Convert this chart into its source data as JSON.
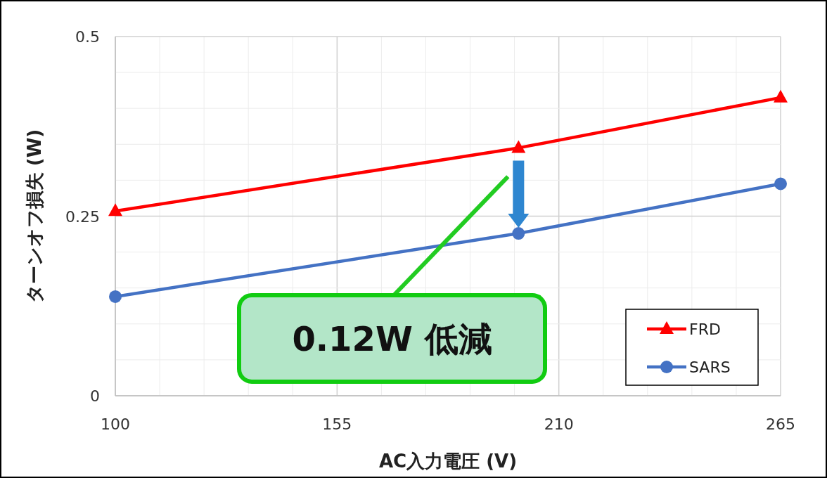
{
  "chart_data": {
    "type": "line",
    "xlabel": "AC入力電圧 (V)",
    "ylabel": "ターンオフ損失 (W)",
    "x": [
      100,
      200,
      265
    ],
    "series": [
      {
        "name": "FRD",
        "color": "#ff0000",
        "marker": "triangle",
        "values": [
          0.257,
          0.345,
          0.415
        ]
      },
      {
        "name": "SARS",
        "color": "#4472c4",
        "marker": "circle",
        "values": [
          0.138,
          0.226,
          0.295
        ]
      }
    ],
    "xlim": [
      100,
      265
    ],
    "ylim": [
      0,
      0.5
    ],
    "xticks": [
      100,
      {
        "value": 111,
        "label": null
      },
      {
        "value": 122,
        "label": null
      },
      {
        "value": 133,
        "label": null
      },
      {
        "value": 144,
        "label": null
      },
      155,
      {
        "value": 166,
        "label": null
      },
      {
        "value": 177,
        "label": null
      },
      {
        "value": 188,
        "label": null
      },
      {
        "value": 199,
        "label": null
      },
      210,
      {
        "value": 221,
        "label": null
      },
      {
        "value": 232,
        "label": null
      },
      {
        "value": 243,
        "label": null
      },
      {
        "value": 254,
        "label": null
      },
      265
    ],
    "yticks": [
      0,
      {
        "value": 0.05,
        "label": null
      },
      {
        "value": 0.1,
        "label": null
      },
      {
        "value": 0.15,
        "label": null
      },
      {
        "value": 0.2,
        "label": null
      },
      0.25,
      {
        "value": 0.3,
        "label": null
      },
      {
        "value": 0.35,
        "label": null
      },
      {
        "value": 0.4,
        "label": null
      },
      {
        "value": 0.45,
        "label": null
      },
      0.5
    ],
    "grid": true,
    "legend": "bottom right",
    "annotations": [
      "0.12W 低減"
    ]
  }
}
